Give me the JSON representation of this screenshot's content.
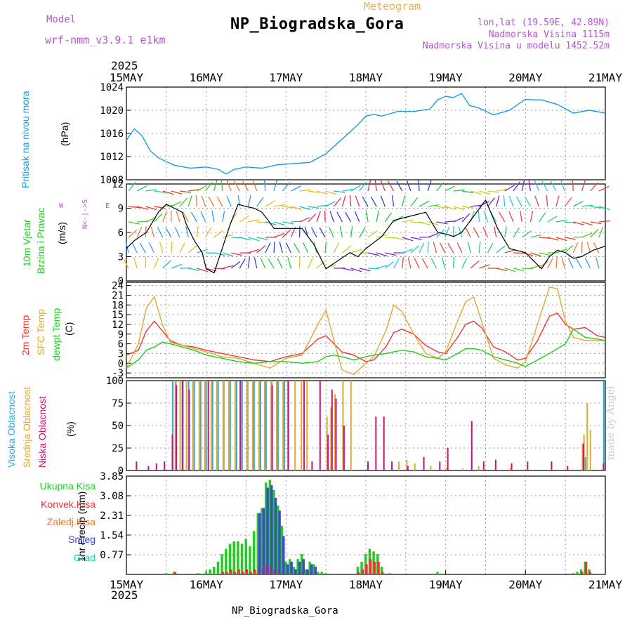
{
  "header": {
    "title": "NP_Biogradska_Gora",
    "subtitle": "Meteogram",
    "model_label": "Model",
    "model_value": "wrf-nmm_v3.9.1 e1km",
    "lonlat": "lon,lat (19.59E, 42.89N)",
    "elevation": "Nadmorska Visina 1115m",
    "model_elevation": "Nadmorska Visina u modelu 1452.52m"
  },
  "footer": {
    "station": "NP_Biogradska_Gora",
    "credit": "made by Angel"
  },
  "colors": {
    "pressure": "#1a9ee0",
    "temp2m": "#ee3333",
    "sfc": "#e0a830",
    "dewpt": "#22cc22",
    "hi_cloud": "#33aadd",
    "mid_cloud": "#e0a830",
    "low_cloud": "#cc1177",
    "total_precip": "#22cc22",
    "conv_precip": "#ee3333",
    "frozen_precip": "#ee7722",
    "snow": "#4444dd",
    "hail": "#22ccaa",
    "speed": "#000000"
  },
  "chart_data": [
    {
      "type": "line",
      "id": "pressure",
      "title": "",
      "ylabel": "Pritisak na nivou mora",
      "unit": "(hPa)",
      "ylim": [
        1008,
        1024
      ],
      "yticks": [
        1008,
        1012,
        1016,
        1020,
        1024
      ],
      "xlabels": [
        "15MAY",
        "16MAY",
        "17MAY",
        "18MAY",
        "19MAY",
        "20MAY",
        "21MAY"
      ],
      "year": "2025",
      "grid": true,
      "x_days": [
        0,
        0.1,
        0.2,
        0.3,
        0.4,
        0.6,
        0.8,
        1.0,
        1.15,
        1.25,
        1.35,
        1.5,
        1.7,
        1.9,
        2.1,
        2.3,
        2.5,
        2.7,
        2.9,
        3.0,
        3.1,
        3.2,
        3.4,
        3.6,
        3.8,
        3.9,
        4.0,
        4.1,
        4.2,
        4.3,
        4.4,
        4.6,
        4.8,
        5.0,
        5.1,
        5.2,
        5.4,
        5.6,
        5.8,
        6.0
      ],
      "series": [
        {
          "name": "",
          "values": [
            1014.8,
            1016.8,
            1015.5,
            1013.0,
            1011.8,
            1010.5,
            1010.0,
            1010.2,
            1009.8,
            1009.0,
            1009.8,
            1010.2,
            1010.0,
            1010.6,
            1010.8,
            1011.0,
            1012.5,
            1015.0,
            1017.5,
            1019.0,
            1019.3,
            1019.0,
            1019.8,
            1019.8,
            1020.2,
            1021.8,
            1022.4,
            1022.2,
            1022.9,
            1020.8,
            1020.5,
            1019.2,
            1020.0,
            1021.9,
            1021.8,
            1021.8,
            1021.0,
            1019.5,
            1020.0,
            1019.5
          ]
        }
      ]
    },
    {
      "type": "line",
      "id": "wind",
      "ylabel": "10m Vjetar",
      "ylabel2": "Brzina i Pravac",
      "unit": "(m/s)",
      "compass_w": "W",
      "compass_e": "E",
      "compass_n": "N<-|->S",
      "ylim": [
        0,
        12
      ],
      "yticks": [
        0,
        3,
        6,
        9,
        12
      ],
      "grid": true,
      "x_days": [
        0,
        0.1,
        0.25,
        0.4,
        0.5,
        0.6,
        0.7,
        0.75,
        0.85,
        0.95,
        1.0,
        1.1,
        1.3,
        1.4,
        1.5,
        1.6,
        1.7,
        1.85,
        2.0,
        2.2,
        2.35,
        2.5,
        2.65,
        2.8,
        2.9,
        3.0,
        3.2,
        3.35,
        3.55,
        3.75,
        3.9,
        4.0,
        4.1,
        4.2,
        4.35,
        4.5,
        4.65,
        4.8,
        5.0,
        5.1,
        5.2,
        5.3,
        5.4,
        5.5,
        5.6,
        5.7,
        5.85,
        6.0
      ],
      "series": [
        {
          "name": "",
          "values": [
            4.0,
            5.0,
            6.0,
            8.5,
            9.5,
            9.0,
            8.5,
            7.0,
            5.0,
            3.5,
            1.5,
            1.0,
            7.0,
            9.5,
            9.2,
            9.0,
            8.5,
            6.5,
            6.5,
            6.5,
            4.5,
            1.5,
            2.5,
            3.5,
            3.0,
            4.0,
            5.5,
            7.5,
            8.0,
            8.5,
            6.0,
            5.8,
            5.5,
            6.0,
            8.0,
            10.0,
            6.5,
            4.0,
            3.5,
            2.5,
            1.5,
            3.0,
            3.8,
            3.5,
            2.8,
            3.0,
            3.8,
            4.3
          ]
        }
      ],
      "arrow_band_colors": [
        "#22cc88",
        "#dd4422",
        "#44cc22",
        "#ee7733",
        "#3399ff",
        "#eebb22",
        "#22bbcc",
        "#dd3355",
        "#3344cc",
        "#22cc44",
        "#cccc22",
        "#7722cc",
        "#22ccdd",
        "#ee4444"
      ]
    },
    {
      "type": "line",
      "id": "temperature",
      "ylabel": "2m Temp",
      "ylabel2": "SFC Temp",
      "ylabel3": "dewpt Temp",
      "unit": "(C)",
      "ylim": [
        -4.5,
        25
      ],
      "yticks": [
        -3,
        0,
        3,
        6,
        9,
        12,
        15,
        18,
        21,
        24
      ],
      "grid": true,
      "x_days": [
        0,
        0.15,
        0.25,
        0.35,
        0.45,
        0.55,
        0.7,
        0.85,
        1.0,
        1.2,
        1.4,
        1.6,
        1.8,
        2.0,
        2.2,
        2.4,
        2.5,
        2.6,
        2.7,
        2.85,
        3.0,
        3.1,
        3.25,
        3.35,
        3.45,
        3.6,
        3.75,
        3.9,
        4.0,
        4.15,
        4.25,
        4.35,
        4.45,
        4.6,
        4.75,
        4.9,
        5.0,
        5.15,
        5.3,
        5.4,
        5.5,
        5.6,
        5.75,
        5.9,
        6.0
      ],
      "series": [
        {
          "name": "2m Temp",
          "values": [
            2.5,
            4.0,
            10.0,
            13.0,
            10.0,
            7.0,
            5.5,
            5.0,
            4.0,
            3.0,
            2.0,
            1.0,
            0.5,
            2.0,
            3.0,
            7.5,
            8.5,
            6.0,
            3.5,
            2.5,
            0.5,
            1.0,
            5.0,
            9.5,
            10.5,
            9.0,
            5.5,
            3.5,
            3.0,
            8.0,
            12.0,
            13.0,
            11.0,
            5.0,
            3.5,
            1.0,
            1.5,
            7.0,
            14.5,
            15.5,
            12.0,
            10.5,
            11.0,
            8.5,
            8.0
          ]
        },
        {
          "name": "SFC Temp",
          "values": [
            -1.5,
            6.0,
            17.0,
            20.5,
            12.0,
            6.5,
            5.5,
            4.5,
            3.5,
            2.0,
            1.5,
            0.0,
            -1.5,
            1.5,
            2.5,
            12.0,
            16.5,
            7.0,
            -2.0,
            -3.5,
            0.0,
            2.0,
            10.0,
            18.0,
            16.0,
            9.0,
            3.0,
            1.5,
            3.5,
            13.0,
            19.0,
            20.5,
            13.0,
            1.5,
            -0.5,
            -1.5,
            0.5,
            12.0,
            23.5,
            23.0,
            13.0,
            8.0,
            7.0,
            7.0,
            7.0
          ]
        },
        {
          "name": "dewpt Temp",
          "values": [
            -1.5,
            1.0,
            4.0,
            5.0,
            6.5,
            6.0,
            5.0,
            4.0,
            2.5,
            1.5,
            0.5,
            0.0,
            0.5,
            0.5,
            0.0,
            0.5,
            2.0,
            2.5,
            2.0,
            1.0,
            2.0,
            2.5,
            3.0,
            3.5,
            4.0,
            3.5,
            2.0,
            1.5,
            1.0,
            3.0,
            4.5,
            4.5,
            4.0,
            2.0,
            1.0,
            0.0,
            -1.0,
            1.0,
            3.0,
            4.5,
            6.0,
            10.5,
            8.0,
            7.5,
            7.0
          ]
        }
      ]
    },
    {
      "type": "bar",
      "id": "clouds",
      "ylabel": "Visoka Oblacnost",
      "ylabel2": "Srednja Oblacnost",
      "ylabel3": "Niska Oblacnost",
      "unit": "(%)",
      "ylim": [
        0,
        100
      ],
      "yticks": [
        0,
        25,
        50,
        75,
        100
      ],
      "grid": true,
      "series": [
        {
          "name": "Visoka Oblacnost",
          "x_days": [
            0.58,
            0.62,
            0.7,
            0.78,
            0.85,
            0.93,
            1.0,
            1.08,
            1.15,
            1.22,
            1.3,
            1.38,
            1.45,
            1.52,
            1.6,
            1.68,
            1.75,
            1.82,
            1.9,
            1.98,
            5.75,
            5.98
          ],
          "values": [
            100,
            100,
            100,
            100,
            100,
            100,
            100,
            100,
            100,
            100,
            100,
            100,
            100,
            100,
            100,
            100,
            100,
            100,
            100,
            100,
            15,
            100
          ]
        },
        {
          "name": "Srednja Oblacnost",
          "x_days": [
            0.6,
            0.66,
            0.74,
            0.82,
            0.9,
            0.97,
            1.05,
            1.12,
            1.2,
            1.27,
            1.35,
            1.42,
            1.5,
            1.57,
            1.65,
            1.72,
            1.8,
            1.87,
            1.95,
            2.02,
            2.1,
            2.18,
            2.25,
            2.5,
            2.55,
            2.6,
            2.7,
            2.8,
            3.4,
            3.5,
            3.6,
            3.8,
            4.0,
            4.2,
            4.4,
            4.8,
            5.7,
            5.72,
            5.76,
            5.8
          ],
          "values": [
            100,
            100,
            100,
            100,
            100,
            100,
            100,
            100,
            100,
            100,
            100,
            100,
            100,
            100,
            100,
            100,
            100,
            100,
            100,
            100,
            100,
            100,
            100,
            60,
            70,
            85,
            100,
            100,
            10,
            12,
            8,
            5,
            3,
            2,
            5,
            3,
            30,
            40,
            75,
            45
          ]
        },
        {
          "name": "Niska Oblacnost",
          "x_days": [
            0.1,
            0.25,
            0.35,
            0.45,
            0.55,
            0.6,
            0.68,
            0.76,
            1.0,
            1.4,
            1.8,
            2.0,
            2.2,
            2.3,
            2.4,
            2.5,
            2.55,
            2.6,
            2.7,
            3.0,
            3.1,
            3.2,
            3.3,
            3.5,
            3.7,
            3.9,
            4.0,
            4.3,
            4.45,
            4.6,
            4.8,
            5.0,
            5.3,
            5.5,
            5.7,
            5.95
          ],
          "values": [
            10,
            5,
            8,
            10,
            40,
            95,
            100,
            90,
            100,
            100,
            95,
            100,
            100,
            10,
            100,
            40,
            90,
            80,
            50,
            10,
            60,
            60,
            10,
            5,
            15,
            10,
            25,
            55,
            10,
            12,
            8,
            10,
            10,
            5,
            30,
            8
          ]
        }
      ]
    },
    {
      "type": "bar",
      "id": "precip",
      "ylabel": "1hr Precip (mm)",
      "legend": [
        "Ukupna Kisa",
        "Konvek.Kisa",
        "Zaledj.Kisa",
        "Snijeg",
        "Grad"
      ],
      "ylim": [
        0,
        3.85
      ],
      "yticks": [
        0.77,
        1.54,
        2.31,
        3.08,
        3.85
      ],
      "grid": true,
      "x_days": [
        0.5,
        0.6,
        0.9,
        1.0,
        1.05,
        1.1,
        1.15,
        1.2,
        1.25,
        1.3,
        1.35,
        1.4,
        1.45,
        1.5,
        1.55,
        1.6,
        1.65,
        1.7,
        1.75,
        1.8,
        1.85,
        1.9,
        1.95,
        2.0,
        2.05,
        2.1,
        2.15,
        2.2,
        2.25,
        2.3,
        2.35,
        2.4,
        2.45,
        2.5,
        2.9,
        2.95,
        3.0,
        3.05,
        3.1,
        3.15,
        3.2,
        3.3,
        3.9,
        5.6,
        5.65,
        5.7,
        5.75,
        5.8
      ],
      "series": [
        {
          "name": "Ukupna Kisa",
          "values": [
            0.05,
            0.1,
            0.05,
            0.1,
            0.2,
            0.3,
            0.5,
            0.8,
            1.0,
            1.2,
            1.3,
            1.3,
            1.2,
            1.4,
            1.1,
            1.7,
            2.4,
            2.6,
            3.6,
            3.7,
            3.3,
            2.7,
            1.9,
            0.5,
            0.6,
            0.3,
            0.6,
            0.8,
            0.2,
            0.5,
            0.4,
            0.1,
            0.1,
            0.05,
            0.3,
            0.5,
            0.8,
            1.0,
            0.9,
            0.8,
            0.3,
            0.05,
            0.1,
            0.05,
            0.1,
            0.2,
            0.5,
            0.2
          ]
        },
        {
          "name": "Konvek.Kisa",
          "values": [
            0,
            0.1,
            0,
            0,
            0,
            0,
            0,
            0.1,
            0.1,
            0.2,
            0.1,
            0.2,
            0.1,
            0.2,
            0.1,
            0.2,
            0.3,
            0.2,
            0.4,
            0.3,
            0.2,
            0.2,
            0.1,
            0,
            0,
            0,
            0,
            0.1,
            0,
            0,
            0,
            0,
            0,
            0,
            0.1,
            0.2,
            0.4,
            0.6,
            0.5,
            0.5,
            0.1,
            0,
            0,
            0,
            0,
            0.1,
            0.5,
            0.1
          ]
        },
        {
          "name": "Snijeg",
          "values": [
            0,
            0,
            0,
            0,
            0,
            0,
            0,
            0,
            0,
            0,
            0,
            0,
            0,
            0,
            0,
            0,
            2.4,
            2.6,
            3.4,
            3.5,
            3.0,
            2.5,
            1.5,
            0.4,
            0.5,
            0.2,
            0.5,
            0.6,
            0.2,
            0.4,
            0.3,
            0,
            0,
            0,
            0,
            0,
            0,
            0,
            0,
            0,
            0,
            0,
            0,
            0,
            0,
            0,
            0,
            0
          ]
        }
      ]
    }
  ]
}
